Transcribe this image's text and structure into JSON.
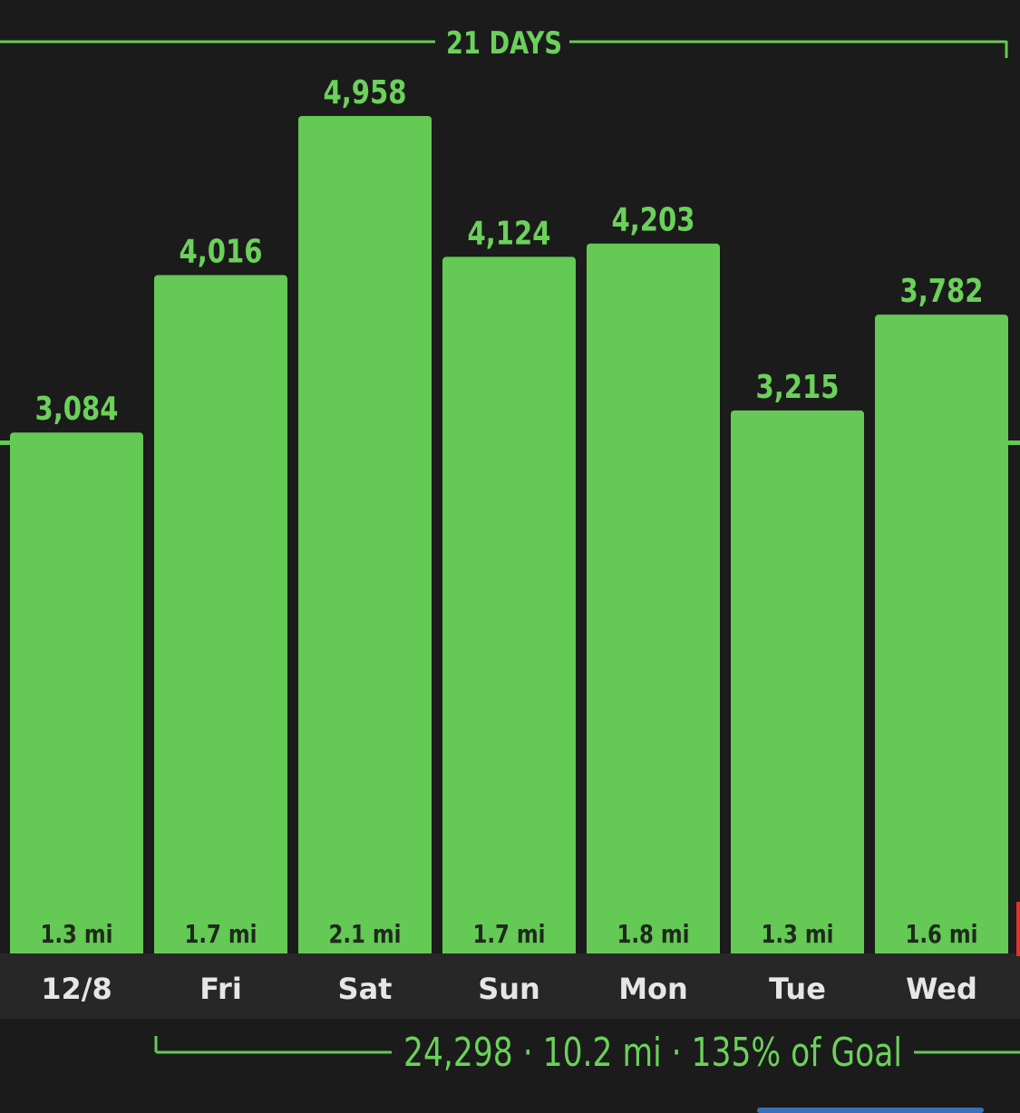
{
  "colors": {
    "background": "#1b1b1b",
    "bar": "#65c955",
    "accent_text": "#6bd15a",
    "axis_band": "#272727",
    "day_label": "#e6e6e6",
    "mile_label": "#1e2a1b",
    "goal_line": "#65c955"
  },
  "chart_data": {
    "type": "bar",
    "title": "",
    "xlabel": "",
    "ylabel": "",
    "categories": [
      "12/8",
      "Fri",
      "Sat",
      "Sun",
      "Mon",
      "Tue",
      "Wed"
    ],
    "series": [
      {
        "values": [
          3084,
          4016,
          4958,
          4124,
          4203,
          3215,
          3782
        ],
        "value_labels": [
          "3,084",
          "4,016",
          "4,958",
          "4,124",
          "4,203",
          "3,215",
          "3,782"
        ],
        "bottom_labels": [
          "1.3 mi",
          "1.7 mi",
          "2.1 mi",
          "1.7 mi",
          "1.8 mi",
          "1.3 mi",
          "1.6 mi"
        ]
      }
    ],
    "ylim": [
      0,
      4958
    ],
    "goal_line_value": 3025,
    "streak_label": "21 DAYS",
    "summary_label": "24,298 · 10.2 mi · 135% of Goal",
    "grid": false,
    "legend": "none"
  }
}
